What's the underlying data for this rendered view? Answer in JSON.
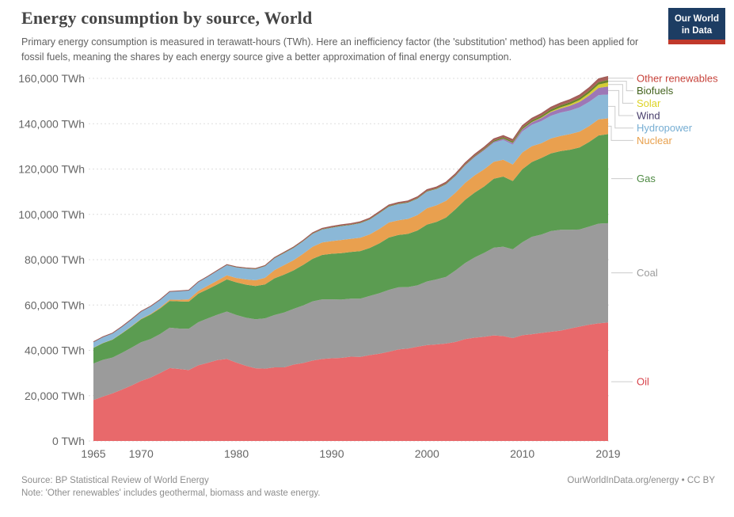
{
  "header": {
    "title": "Energy consumption by source, World",
    "subtitle": "Primary energy consumption is measured in terawatt-hours (TWh). Here an inefficiency factor (the 'substitution' method) has been applied for fossil fuels, meaning the shares by each energy source give a better approximation of final energy consumption."
  },
  "logo": {
    "line1": "Our World",
    "line2": "in Data",
    "bg_color": "#1d3d63",
    "stripe_color": "#c0392b"
  },
  "footer": {
    "source": "Source: BP Statistical Review of World Energy",
    "note": "Note: 'Other renewables' includes geothermal, biomass and waste energy.",
    "credit": "OurWorldInData.org/energy • CC BY"
  },
  "chart_data": {
    "type": "area",
    "stacked": true,
    "title": "Energy consumption by source, World",
    "unit": "TWh",
    "xlim": [
      1965,
      2019
    ],
    "ylim": [
      0,
      160000
    ],
    "grid": "dashed-horizontal",
    "legend_position": "right",
    "x_ticks": [
      {
        "value": 1965,
        "label": "1965"
      },
      {
        "value": 1970,
        "label": "1970"
      },
      {
        "value": 1980,
        "label": "1980"
      },
      {
        "value": 1990,
        "label": "1990"
      },
      {
        "value": 2000,
        "label": "2000"
      },
      {
        "value": 2010,
        "label": "2010"
      },
      {
        "value": 2019,
        "label": "2019"
      }
    ],
    "y_ticks": [
      {
        "value": 0,
        "label": "0 TWh"
      },
      {
        "value": 20000,
        "label": "20,000 TWh"
      },
      {
        "value": 40000,
        "label": "40,000 TWh"
      },
      {
        "value": 60000,
        "label": "60,000 TWh"
      },
      {
        "value": 80000,
        "label": "80,000 TWh"
      },
      {
        "value": 100000,
        "label": "100,000 TWh"
      },
      {
        "value": 120000,
        "label": "120,000 TWh"
      },
      {
        "value": 140000,
        "label": "140,000 TWh"
      },
      {
        "value": 160000,
        "label": "160,000 TWh"
      }
    ],
    "x": [
      1965,
      1966,
      1967,
      1968,
      1969,
      1970,
      1971,
      1972,
      1973,
      1974,
      1975,
      1976,
      1977,
      1978,
      1979,
      1980,
      1981,
      1982,
      1983,
      1984,
      1985,
      1986,
      1987,
      1988,
      1989,
      1990,
      1991,
      1992,
      1993,
      1994,
      1995,
      1996,
      1997,
      1998,
      1999,
      2000,
      2001,
      2002,
      2003,
      2004,
      2005,
      2006,
      2007,
      2008,
      2009,
      2010,
      2011,
      2012,
      2013,
      2014,
      2015,
      2016,
      2017,
      2018,
      2019
    ],
    "series": [
      {
        "id": "oil",
        "name": "Oil",
        "color": "#e8696b",
        "label_color": "#d8434b",
        "values": [
          18100,
          19600,
          21000,
          22700,
          24500,
          26500,
          28000,
          30000,
          32200,
          31800,
          31300,
          33400,
          34500,
          35700,
          36200,
          34600,
          33200,
          32100,
          31900,
          32500,
          32500,
          33700,
          34400,
          35500,
          36200,
          36500,
          36700,
          37200,
          37100,
          37900,
          38500,
          39400,
          40400,
          40800,
          41600,
          42300,
          42600,
          43000,
          43700,
          45000,
          45600,
          46000,
          46600,
          46300,
          45400,
          46700,
          47100,
          47700,
          48200,
          48700,
          49600,
          50500,
          51300,
          51900,
          52300
        ]
      },
      {
        "id": "coal",
        "name": "Coal",
        "color": "#9b9b9b",
        "label_color": "#9b9b9b",
        "values": [
          16100,
          16200,
          15800,
          16200,
          16700,
          17100,
          17000,
          17200,
          17800,
          17800,
          18200,
          19000,
          19600,
          20000,
          20900,
          21000,
          21200,
          21600,
          22200,
          23100,
          24200,
          24600,
          25400,
          26100,
          26300,
          26000,
          25700,
          25600,
          25700,
          26100,
          26700,
          27300,
          27400,
          27100,
          27100,
          28100,
          28700,
          29400,
          31600,
          33500,
          35400,
          37000,
          38700,
          39400,
          39200,
          41000,
          43000,
          43400,
          44400,
          44500,
          43600,
          42800,
          43300,
          44000,
          43800
        ]
      },
      {
        "id": "gas",
        "name": "Gas",
        "color": "#5b9c51",
        "label_color": "#4e8a43",
        "values": [
          6900,
          7400,
          7900,
          8600,
          9300,
          10100,
          10800,
          11300,
          11800,
          12000,
          12000,
          12600,
          12900,
          13400,
          14200,
          14400,
          14600,
          14700,
          15000,
          16200,
          16700,
          17000,
          17900,
          18800,
          19600,
          20100,
          20500,
          20600,
          21000,
          21200,
          22000,
          23100,
          23100,
          23500,
          24200,
          25100,
          25400,
          26200,
          27000,
          27900,
          28600,
          29300,
          30400,
          31000,
          30100,
          32200,
          33000,
          33800,
          34300,
          34700,
          35300,
          36200,
          37300,
          38900,
          39300
        ]
      },
      {
        "id": "nuclear",
        "name": "Nuclear",
        "color": "#e9a04f",
        "label_color": "#e8a04c",
        "values": [
          70,
          90,
          110,
          140,
          170,
          220,
          290,
          400,
          550,
          700,
          1000,
          1200,
          1500,
          1700,
          1800,
          1900,
          2300,
          2500,
          2900,
          3600,
          4200,
          4500,
          4900,
          5300,
          5500,
          5600,
          5800,
          5800,
          5900,
          6000,
          6400,
          6600,
          6500,
          6600,
          6800,
          7200,
          7300,
          7400,
          7300,
          7500,
          7600,
          7600,
          7500,
          7400,
          7300,
          7400,
          7000,
          6500,
          6600,
          6700,
          6900,
          7000,
          7000,
          7100,
          7000
        ]
      },
      {
        "id": "hydropower",
        "name": "Hydropower",
        "color": "#8bb8d7",
        "label_color": "#77aed3",
        "values": [
          2500,
          2600,
          2700,
          2800,
          3000,
          3200,
          3300,
          3400,
          3500,
          3800,
          3900,
          3900,
          4000,
          4300,
          4500,
          4700,
          4800,
          4900,
          5100,
          5200,
          5300,
          5400,
          5500,
          5700,
          5700,
          5900,
          6100,
          6100,
          6400,
          6500,
          6900,
          7000,
          7100,
          7100,
          7200,
          7300,
          7100,
          7200,
          7300,
          7600,
          8000,
          8300,
          8400,
          8700,
          8800,
          9300,
          9400,
          9800,
          10000,
          10300,
          10400,
          10700,
          10700,
          10700,
          10500
        ]
      },
      {
        "id": "wind",
        "name": "Wind",
        "color": "#9d77b6",
        "label_color": "#473d6b",
        "values": [
          0,
          0,
          0,
          0,
          0,
          0,
          0,
          0,
          0,
          0,
          0,
          0,
          0,
          0,
          0,
          0,
          0,
          0,
          0,
          0,
          1,
          1,
          2,
          3,
          5,
          10,
          10,
          12,
          15,
          18,
          20,
          25,
          30,
          40,
          60,
          90,
          100,
          130,
          160,
          220,
          300,
          370,
          450,
          600,
          700,
          900,
          1100,
          1300,
          1600,
          1800,
          2100,
          2400,
          2800,
          3200,
          3500
        ]
      },
      {
        "id": "solar",
        "name": "Solar",
        "color": "#d5cd35",
        "label_color": "#ddd325",
        "values": [
          0,
          0,
          0,
          0,
          0,
          0,
          0,
          0,
          0,
          0,
          0,
          0,
          0,
          0,
          0,
          0,
          0,
          0,
          0,
          0,
          0,
          0,
          0,
          0,
          0,
          0,
          0,
          0,
          0,
          0,
          0,
          0,
          0,
          0,
          0,
          3,
          4,
          5,
          6,
          8,
          10,
          15,
          20,
          30,
          60,
          90,
          160,
          250,
          350,
          500,
          680,
          850,
          1100,
          1500,
          1800
        ]
      },
      {
        "id": "biofuels",
        "name": "Biofuels",
        "color": "#68832b",
        "label_color": "#44631f",
        "values": [
          30,
          32,
          34,
          36,
          38,
          40,
          42,
          44,
          46,
          48,
          50,
          65,
          80,
          95,
          110,
          120,
          130,
          140,
          150,
          160,
          160,
          165,
          170,
          180,
          185,
          190,
          195,
          200,
          210,
          215,
          220,
          225,
          230,
          240,
          245,
          250,
          270,
          290,
          310,
          330,
          350,
          420,
          500,
          580,
          620,
          700,
          730,
          760,
          820,
          870,
          900,
          930,
          980,
          1050,
          1100
        ]
      },
      {
        "id": "other-renewables",
        "name": "Other renewables",
        "color": "#a9605a",
        "label_color": "#c7433b",
        "values": [
          60,
          62,
          64,
          66,
          68,
          70,
          75,
          80,
          85,
          95,
          100,
          105,
          110,
          120,
          125,
          130,
          150,
          170,
          190,
          210,
          230,
          260,
          290,
          320,
          360,
          400,
          420,
          440,
          460,
          480,
          500,
          520,
          540,
          560,
          580,
          600,
          620,
          640,
          660,
          680,
          700,
          720,
          750,
          780,
          830,
          900,
          950,
          1000,
          1060,
          1120,
          1200,
          1290,
          1390,
          1500,
          1600
        ]
      }
    ]
  }
}
